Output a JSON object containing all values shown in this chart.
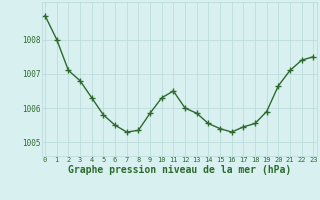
{
  "x": [
    0,
    1,
    2,
    3,
    4,
    5,
    6,
    7,
    8,
    9,
    10,
    11,
    12,
    13,
    14,
    15,
    16,
    17,
    18,
    19,
    20,
    21,
    22,
    23
  ],
  "y": [
    1008.7,
    1008.0,
    1007.1,
    1006.8,
    1006.3,
    1005.8,
    1005.5,
    1005.3,
    1005.35,
    1005.85,
    1006.3,
    1006.5,
    1006.0,
    1005.85,
    1005.55,
    1005.4,
    1005.3,
    1005.45,
    1005.55,
    1005.9,
    1006.65,
    1007.1,
    1007.4,
    1007.5
  ],
  "line_color": "#2d6a2d",
  "marker": "+",
  "marker_size": 4,
  "marker_color": "#2d6a2d",
  "bg_color": "#d9f0f0",
  "grid_color": "#b8d8d8",
  "xlabel": "Graphe pression niveau de la mer (hPa)",
  "xlabel_fontsize": 7,
  "ytick_labels": [
    "1005",
    "1006",
    "1007",
    "1008"
  ],
  "yticks": [
    1005,
    1006,
    1007,
    1008
  ],
  "ylim": [
    1004.6,
    1009.1
  ],
  "xlim": [
    -0.3,
    23.3
  ],
  "tick_color": "#2d6a2d",
  "linewidth": 1.0,
  "xtick_fontsize": 5.0,
  "ytick_fontsize": 5.5
}
